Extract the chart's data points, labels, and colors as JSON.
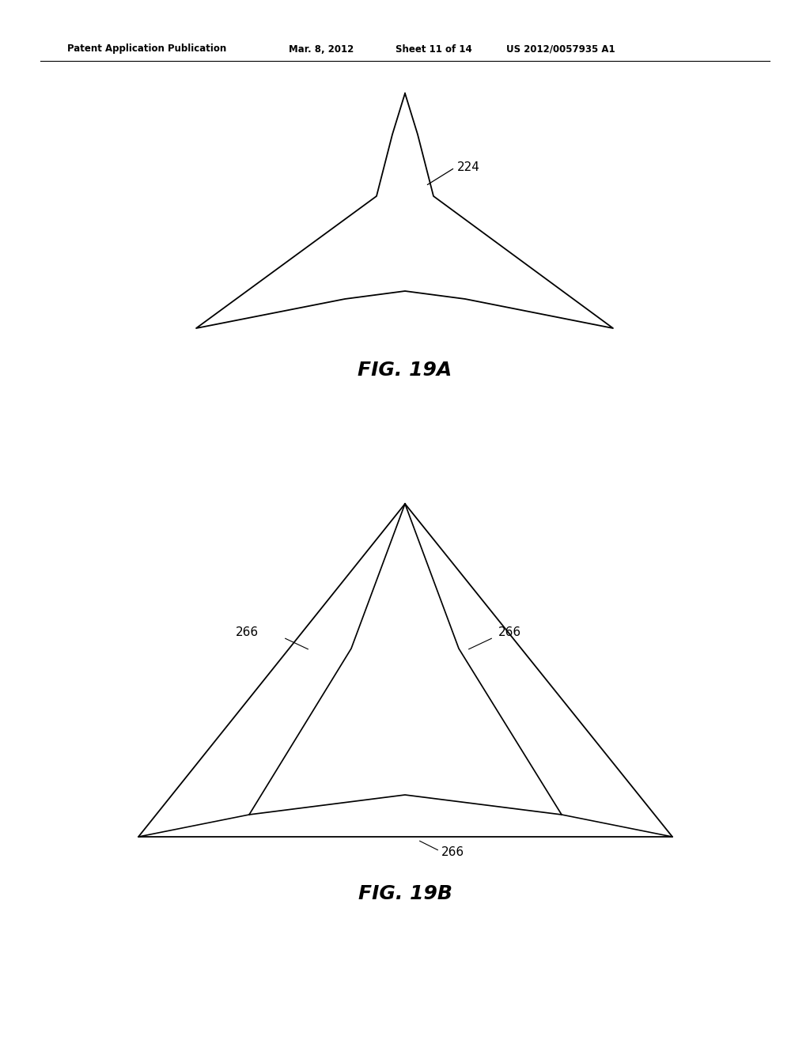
{
  "background_color": "#ffffff",
  "header_text": "Patent Application Publication",
  "header_date": "Mar. 8, 2012",
  "header_sheet": "Sheet 11 of 14",
  "header_patent": "US 2012/0057935 A1",
  "fig19A_label": "FIG. 19A",
  "fig19B_label": "FIG. 19B",
  "line_color": "#000000",
  "line_width": 1.3,
  "annotation_fontsize": 11,
  "figure_label_fontsize": 18
}
